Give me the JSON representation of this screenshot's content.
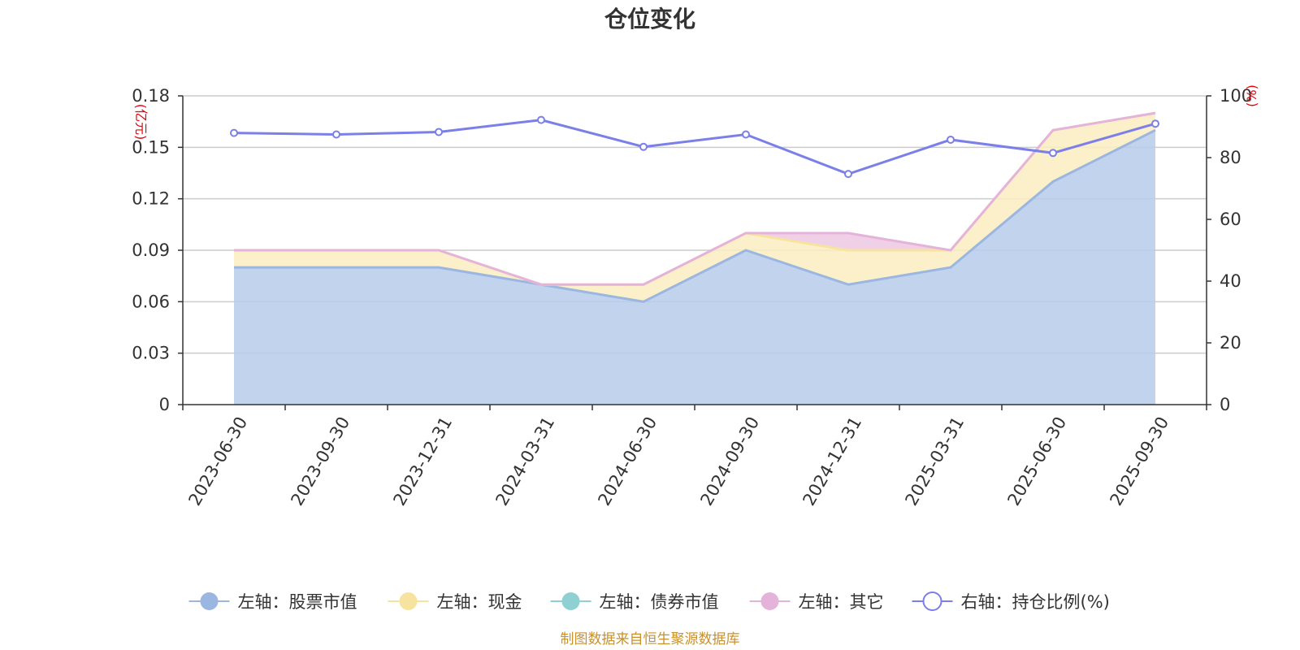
{
  "chart_data": {
    "type": "area",
    "title": "仓位变化",
    "categories": [
      "2023-06-30",
      "2023-09-30",
      "2023-12-31",
      "2024-03-31",
      "2024-06-30",
      "2024-09-30",
      "2024-12-31",
      "2025-03-31",
      "2025-06-30",
      "2025-09-30"
    ],
    "left_axis": {
      "unit": "(亿元)",
      "ylim": [
        0,
        0.18
      ],
      "ticks": [
        "0",
        "0.03",
        "0.06",
        "0.09",
        "0.12",
        "0.15",
        "0.18"
      ]
    },
    "right_axis": {
      "unit": "(%)",
      "ylim": [
        0,
        100
      ],
      "ticks": [
        "0",
        "20",
        "40",
        "60",
        "80",
        "100"
      ]
    },
    "series": [
      {
        "name": "左轴：股票市值",
        "axis": "left",
        "stack": true,
        "color": "#9bb6e0",
        "fill": "#b7cbea",
        "values": [
          0.08,
          0.08,
          0.08,
          0.07,
          0.06,
          0.09,
          0.07,
          0.08,
          0.13,
          0.16
        ]
      },
      {
        "name": "左轴：现金",
        "axis": "left",
        "stack": true,
        "color": "#f7e3a0",
        "fill": "#faedc0",
        "values": [
          0.01,
          0.01,
          0.01,
          0.0,
          0.01,
          0.01,
          0.02,
          0.01,
          0.03,
          0.01
        ]
      },
      {
        "name": "左轴：债券市值",
        "axis": "left",
        "stack": true,
        "color": "#8fd0d3",
        "fill": "#b9e3e5",
        "values": [
          0,
          0,
          0,
          0,
          0,
          0,
          0,
          0,
          0,
          0
        ]
      },
      {
        "name": "左轴：其它",
        "axis": "left",
        "stack": true,
        "color": "#e5b3d9",
        "fill": "#ecc8e3",
        "values": [
          0.0,
          0.0,
          0.0,
          0.0,
          0.0,
          0.0,
          0.01,
          0.0,
          0.0,
          0.0
        ]
      },
      {
        "name": "右轴：持仓比例(%)",
        "axis": "right",
        "type": "line",
        "color": "#7b7fe8",
        "values": [
          88,
          87.5,
          88.3,
          92.2,
          83.5,
          87.5,
          74.7,
          85.8,
          81.5,
          91
        ]
      }
    ],
    "legend_position": "bottom",
    "grid": true
  },
  "footer": {
    "source": "制图数据来自恒生聚源数据库"
  }
}
